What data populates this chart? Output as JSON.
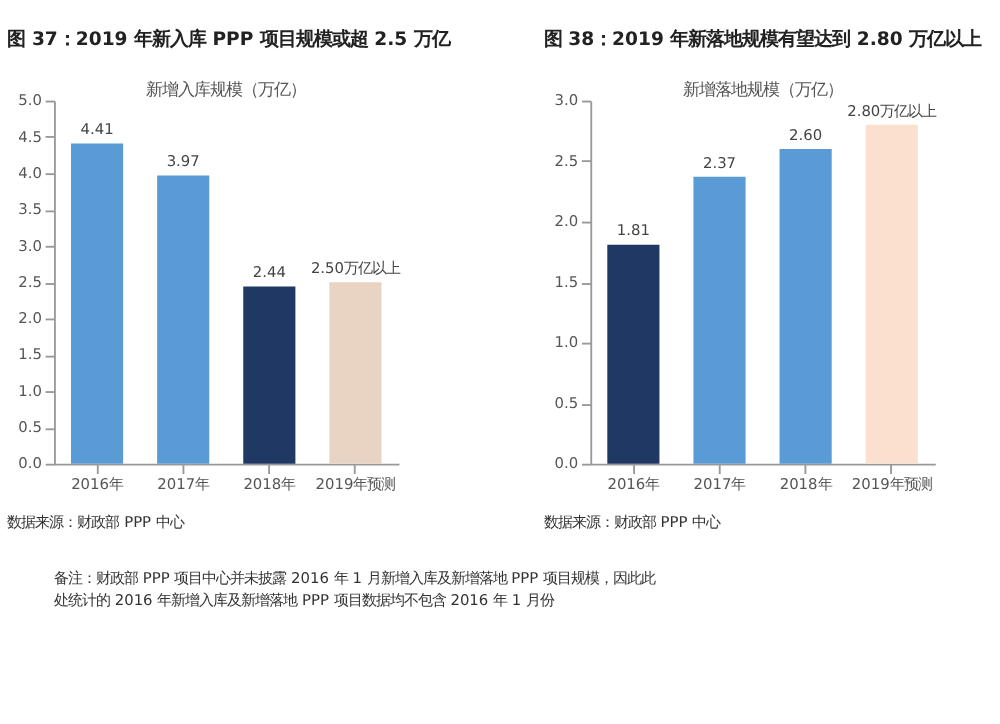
{
  "chart_data": [
    {
      "type": "bar",
      "title": "图 37：2019 年新入库 PPP 项目规模或超 2.5 万亿",
      "categories": [
        "2016年",
        "2017年",
        "2018年",
        "2019年预测"
      ],
      "series": [
        {
          "name": "新增入库规模（万亿）",
          "values": [
            4.41,
            3.97,
            2.44,
            2.5
          ],
          "colors": [
            "#5b9bd5",
            "#5b9bd5",
            "#1f3864",
            "#e9d3c3"
          ],
          "value_labels": [
            "4.41",
            "3.97",
            "2.44",
            "2.50万亿以上"
          ]
        }
      ],
      "ylim": [
        0,
        5
      ],
      "yticks": [
        {
          "value": 0,
          "label": "0.0"
        },
        0.5,
        {
          "value": 1,
          "label": "1.0"
        },
        1.5,
        {
          "value": 2,
          "label": "2.0"
        },
        2.5,
        {
          "value": 3,
          "label": "3.0"
        },
        3.5,
        {
          "value": 4,
          "label": "4.0"
        },
        4.5,
        {
          "value": 5,
          "label": "5.0"
        }
      ],
      "annotations": [
        "数据来源：财政部 PPP 中心",
        "备注：财政部 PPP 项目中心并未披露 2016 年 1 月新增入库及新增落地 PPP 项目规模，因此此处统计的 2016 年新增入库及新增落地 PPP 项目数据均不包含 2016 年 1 月份"
      ]
    },
    {
      "type": "bar",
      "title": "图 38：2019 年新落地规模有望达到 2.80 万亿以上",
      "categories": [
        "2016年",
        "2017年",
        "2018年",
        "2019年预测"
      ],
      "series": [
        {
          "name": "新增落地规模（万亿）",
          "values": [
            1.81,
            2.37,
            2.6,
            2.8
          ],
          "colors": [
            "#1f3864",
            "#5b9bd5",
            "#5b9bd5",
            "#fbe0cf"
          ],
          "value_labels": [
            "1.81",
            "2.37",
            "2.60",
            "2.80万亿以上"
          ]
        }
      ],
      "ylim": [
        0,
        3
      ],
      "yticks": [
        {
          "value": 0,
          "label": "0.0"
        },
        0.5,
        {
          "value": 1,
          "label": "1.0"
        },
        1.5,
        {
          "value": 2,
          "label": "2.0"
        },
        2.5,
        {
          "value": 3,
          "label": "3.0"
        }
      ],
      "annotations": [
        "数据来源：财政部 PPP 中心"
      ]
    }
  ]
}
